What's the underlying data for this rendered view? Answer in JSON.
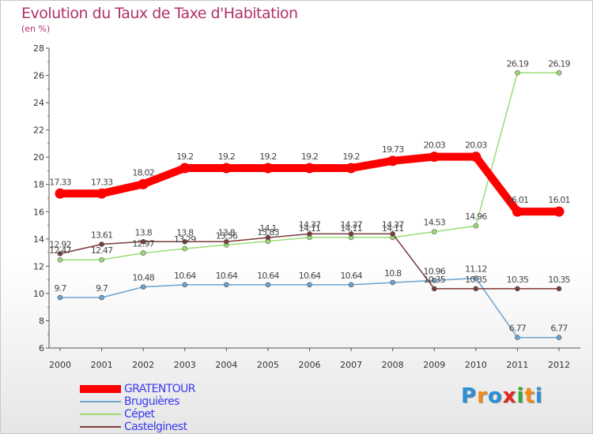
{
  "title": "Evolution du Taux de Taxe d'Habitation",
  "subtitle": "(en %)",
  "logo": {
    "text": "Proxiti",
    "letters": [
      {
        "char": "P",
        "color": "#2a8fd6"
      },
      {
        "char": "r",
        "color": "#f08a1a"
      },
      {
        "char": "o",
        "color": "#2a8fd6"
      },
      {
        "char": "x",
        "color": "#e0281e"
      },
      {
        "char": "i",
        "color": "#3aa83a"
      },
      {
        "char": "t",
        "color": "#f08a1a"
      },
      {
        "char": "i",
        "color": "#2a8fd6"
      }
    ]
  },
  "chart_data": {
    "type": "line",
    "x": [
      "2000",
      "2001",
      "2002",
      "2003",
      "2004",
      "2005",
      "2006",
      "2007",
      "2008",
      "2009",
      "2010",
      "2011",
      "2012"
    ],
    "ylim": [
      6,
      28
    ],
    "yticks": [
      6,
      8,
      10,
      12,
      14,
      16,
      18,
      20,
      22,
      24,
      26,
      28
    ],
    "grid": false,
    "legend_position": "bottom-left",
    "series": [
      {
        "name": "GRATENTOUR",
        "color": "#ff0000",
        "emphasis": true,
        "values": [
          17.33,
          17.33,
          18.02,
          19.2,
          19.2,
          19.2,
          19.2,
          19.2,
          19.73,
          20.03,
          20.03,
          16.01,
          16.01
        ],
        "labels": [
          "17.33",
          "17.33",
          "18.02",
          "19.2",
          "19.2",
          "19.2",
          "19.2",
          "19.2",
          "19.73",
          "20.03",
          "20.03",
          "16.01",
          "16.01"
        ]
      },
      {
        "name": "Bruguières",
        "color": "#6ba3d0",
        "emphasis": false,
        "values": [
          9.7,
          9.7,
          10.48,
          10.64,
          10.64,
          10.64,
          10.64,
          10.64,
          10.8,
          10.96,
          11.12,
          6.77,
          6.77
        ],
        "labels": [
          "9.7",
          "9.7",
          "10.48",
          "10.64",
          "10.64",
          "10.64",
          "10.64",
          "10.64",
          "10.8",
          "10.96",
          "11.12",
          "6.77",
          "6.77"
        ]
      },
      {
        "name": "Cépet",
        "color": "#99dd77",
        "emphasis": false,
        "values": [
          12.47,
          12.47,
          12.97,
          13.29,
          13.56,
          13.83,
          14.11,
          14.11,
          14.11,
          14.53,
          14.96,
          26.19,
          26.19
        ],
        "labels": [
          "12.47",
          "12.47",
          "12.97",
          "13.29",
          "13.56",
          "13.83",
          "14.11",
          "14.11",
          "14.11",
          "14.53",
          "14.96",
          "26.19",
          "26.19"
        ]
      },
      {
        "name": "Castelginest",
        "color": "#7a3b3b",
        "emphasis": false,
        "values": [
          12.92,
          13.61,
          13.8,
          13.8,
          13.8,
          14.1,
          14.37,
          14.37,
          14.37,
          10.35,
          10.35,
          10.35,
          10.35
        ],
        "labels": [
          "12.92",
          "13.61",
          "13.8",
          "13.8",
          "13.8",
          "14.1",
          "14.37",
          "14.37",
          "14.37",
          "10.35",
          "10.35",
          "10.35",
          "10.35"
        ]
      }
    ]
  }
}
